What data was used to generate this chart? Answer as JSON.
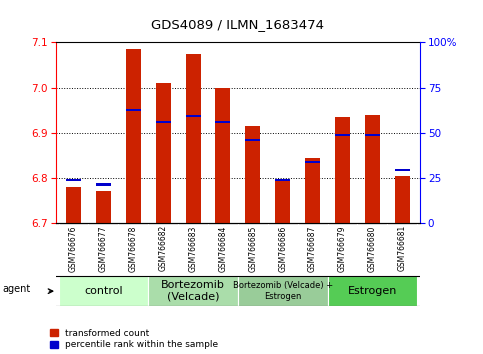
{
  "title": "GDS4089 / ILMN_1683474",
  "samples": [
    "GSM766676",
    "GSM766677",
    "GSM766678",
    "GSM766682",
    "GSM766683",
    "GSM766684",
    "GSM766685",
    "GSM766686",
    "GSM766687",
    "GSM766679",
    "GSM766680",
    "GSM766681"
  ],
  "red_values": [
    6.78,
    6.77,
    7.085,
    7.01,
    7.075,
    7.0,
    6.915,
    6.795,
    6.845,
    6.935,
    6.94,
    6.805
  ],
  "blue_values": [
    6.793,
    6.783,
    6.948,
    6.921,
    6.935,
    6.921,
    6.882,
    6.793,
    6.833,
    6.892,
    6.892,
    6.815
  ],
  "ylim_left": [
    6.7,
    7.1
  ],
  "ylim_right": [
    0,
    100
  ],
  "yticks_left": [
    6.7,
    6.8,
    6.9,
    7.0,
    7.1
  ],
  "yticks_right": [
    0,
    25,
    50,
    75,
    100
  ],
  "ytick_labels_right": [
    "0",
    "25",
    "50",
    "75",
    "100%"
  ],
  "groups": [
    {
      "label": "control",
      "start": 0,
      "end": 3,
      "color": "#ccffcc",
      "fontsize": 8
    },
    {
      "label": "Bortezomib\n(Velcade)",
      "start": 3,
      "end": 6,
      "color": "#aaddaa",
      "fontsize": 8
    },
    {
      "label": "Bortezomib (Velcade) +\nEstrogen",
      "start": 6,
      "end": 9,
      "color": "#99cc99",
      "fontsize": 6
    },
    {
      "label": "Estrogen",
      "start": 9,
      "end": 12,
      "color": "#55cc55",
      "fontsize": 8
    }
  ],
  "legend_red": "transformed count",
  "legend_blue": "percentile rank within the sample",
  "bar_width": 0.5,
  "red_color": "#cc2200",
  "blue_color": "#0000cc",
  "agent_label": "agent"
}
